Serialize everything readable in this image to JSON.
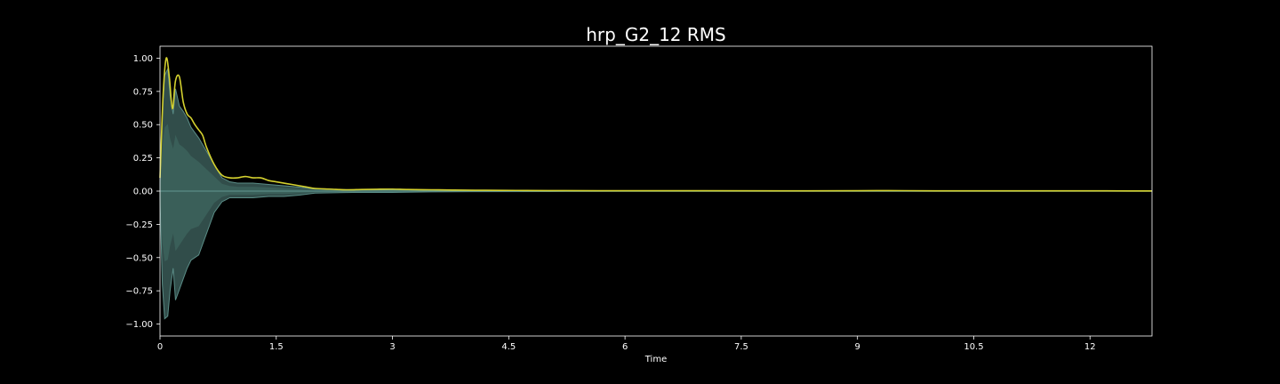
{
  "chart_data": {
    "type": "line",
    "title": "hrp_G2_12 RMS",
    "xlabel": "Time",
    "ylabel": "",
    "xlim": [
      0,
      12.8
    ],
    "ylim": [
      -1.09,
      1.09
    ],
    "grid": false,
    "x_ticks": [
      {
        "value": 0,
        "label": "0"
      },
      {
        "value": 1.5,
        "label": "1.5"
      },
      {
        "value": 3,
        "label": "3"
      },
      {
        "value": 4.5,
        "label": "4.5"
      },
      {
        "value": 6,
        "label": "6"
      },
      {
        "value": 7.5,
        "label": "7.5"
      },
      {
        "value": 9,
        "label": "9"
      },
      {
        "value": 10.5,
        "label": "10.5"
      },
      {
        "value": 12,
        "label": "12"
      }
    ],
    "y_ticks": [
      {
        "value": 1.0,
        "label": "1.00"
      },
      {
        "value": 0.75,
        "label": "0.75"
      },
      {
        "value": 0.5,
        "label": "0.50"
      },
      {
        "value": 0.25,
        "label": "0.25"
      },
      {
        "value": 0.0,
        "label": "0.00"
      },
      {
        "value": -0.25,
        "label": "−0.25"
      },
      {
        "value": -0.5,
        "label": "−0.50"
      },
      {
        "value": -0.75,
        "label": "−0.75"
      },
      {
        "value": -1.0,
        "label": "−1.00"
      }
    ],
    "series": [
      {
        "kind": "rms",
        "color": "#d4d12f",
        "x": [
          0,
          0.04,
          0.08,
          0.12,
          0.16,
          0.2,
          0.25,
          0.3,
          0.35,
          0.4,
          0.45,
          0.5,
          0.55,
          0.6,
          0.7,
          0.8,
          0.9,
          1.0,
          1.1,
          1.2,
          1.3,
          1.4,
          1.5,
          1.6,
          1.7,
          1.8,
          1.9,
          2.0,
          2.2,
          2.4,
          2.6,
          2.8,
          3.0,
          3.2,
          3.5,
          3.8,
          4.2,
          4.6,
          5.0,
          6.0,
          7.0,
          8.0,
          9.0,
          9.4,
          10.0,
          11.0,
          12.0,
          12.8
        ],
        "y": [
          0.1,
          0.72,
          1.0,
          0.86,
          0.62,
          0.83,
          0.86,
          0.67,
          0.58,
          0.55,
          0.5,
          0.46,
          0.42,
          0.33,
          0.2,
          0.12,
          0.1,
          0.1,
          0.11,
          0.1,
          0.1,
          0.08,
          0.07,
          0.06,
          0.05,
          0.04,
          0.03,
          0.02,
          0.015,
          0.01,
          0.012,
          0.014,
          0.015,
          0.012,
          0.01,
          0.008,
          0.006,
          0.005,
          0.004,
          0.003,
          0.003,
          0.002,
          0.003,
          0.004,
          0.002,
          0.002,
          0.002,
          0.001
        ]
      },
      {
        "kind": "waveform-envelope",
        "color": "#5a8c86",
        "x": [
          0,
          0.03,
          0.06,
          0.1,
          0.13,
          0.17,
          0.2,
          0.25,
          0.3,
          0.35,
          0.4,
          0.5,
          0.6,
          0.7,
          0.8,
          0.9,
          1.0,
          1.2,
          1.4,
          1.6,
          1.8,
          2.0,
          2.5,
          3.0,
          3.5,
          4.0,
          5.0,
          6.0,
          8.0,
          10.0,
          12.8
        ],
        "upper": [
          0.05,
          0.6,
          0.87,
          0.92,
          0.72,
          0.58,
          0.77,
          0.64,
          0.6,
          0.55,
          0.48,
          0.4,
          0.3,
          0.2,
          0.1,
          0.07,
          0.06,
          0.06,
          0.05,
          0.04,
          0.03,
          0.015,
          0.01,
          0.01,
          0.006,
          0.004,
          0.003,
          0.002,
          0.002,
          0.002,
          0.001
        ],
        "lower": [
          -0.05,
          -0.7,
          -0.96,
          -0.94,
          -0.75,
          -0.58,
          -0.82,
          -0.74,
          -0.66,
          -0.58,
          -0.52,
          -0.48,
          -0.32,
          -0.16,
          -0.08,
          -0.05,
          -0.05,
          -0.05,
          -0.04,
          -0.04,
          -0.03,
          -0.015,
          -0.01,
          -0.01,
          -0.006,
          -0.004,
          -0.003,
          -0.002,
          -0.002,
          -0.002,
          -0.001
        ]
      }
    ]
  }
}
